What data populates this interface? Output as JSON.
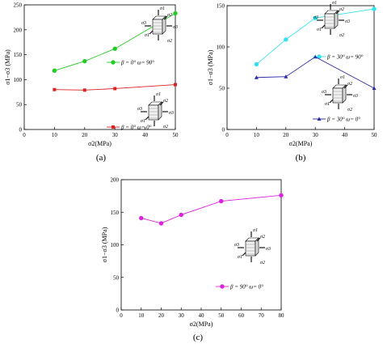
{
  "chart_data": [
    {
      "id": "a",
      "type": "line",
      "panel_label": "(a)",
      "xlabel": "σ2(MPa)",
      "ylabel": "σ1−σ3 (MPa)",
      "xlim": [
        0,
        50
      ],
      "ylim": [
        0,
        250
      ],
      "xticks": [
        0,
        10,
        20,
        30,
        40,
        50
      ],
      "yticks": [
        0,
        50,
        100,
        150,
        200,
        250
      ],
      "grid": false,
      "series": [
        {
          "name": "β = 0° ω= 90°",
          "color": "#22cc22",
          "marker": "circle",
          "x": [
            10,
            20,
            30,
            50
          ],
          "y": [
            118,
            137,
            162,
            233
          ]
        },
        {
          "name": "β = 0° ω= 0°",
          "color": "#dd2222",
          "marker": "square",
          "x": [
            10,
            20,
            30,
            50
          ],
          "y": [
            80,
            79,
            82,
            90
          ]
        }
      ],
      "sketch_labels": [
        "σ1",
        "σ2",
        "σ3",
        "σ3",
        "σ2",
        "σ1"
      ]
    },
    {
      "id": "b",
      "type": "line",
      "panel_label": "(b)",
      "xlabel": "σ2(MPa)",
      "ylabel": "σ1−σ3 (MPa)",
      "xlim": [
        0,
        50
      ],
      "ylim": [
        0,
        150
      ],
      "xticks": [
        0,
        10,
        20,
        30,
        40,
        50
      ],
      "yticks": [
        0,
        50,
        100,
        150
      ],
      "grid": false,
      "series": [
        {
          "name": "β = 30° ω= 90°",
          "color": "#33e0f0",
          "marker": "circle",
          "x": [
            10,
            20,
            30,
            50
          ],
          "y": [
            79,
            109,
            135,
            146
          ]
        },
        {
          "name": "β = 30° ω= 0°",
          "color": "#2a2aa8",
          "marker": "triangle",
          "x": [
            10,
            20,
            30,
            50
          ],
          "y": [
            63,
            64,
            88,
            50
          ]
        }
      ],
      "sketch_labels": [
        "σ1",
        "σ2",
        "σ3",
        "σ3",
        "σ2",
        "σ1"
      ]
    },
    {
      "id": "c",
      "type": "line",
      "panel_label": "(c)",
      "xlabel": "σ2(MPa)",
      "ylabel": "σ1−σ3 (MPa)",
      "xlim": [
        0,
        80
      ],
      "ylim": [
        0,
        200
      ],
      "xticks": [
        0,
        10,
        20,
        30,
        40,
        50,
        60,
        70,
        80
      ],
      "yticks": [
        0,
        50,
        100,
        150,
        200
      ],
      "grid": false,
      "series": [
        {
          "name": "β = 90° ω= 0°",
          "color": "#dd22dd",
          "marker": "circle",
          "x": [
            10,
            20,
            30,
            50,
            80
          ],
          "y": [
            141,
            133,
            146,
            167,
            176
          ]
        }
      ],
      "sketch_labels": [
        "σ1",
        "σ2",
        "σ3",
        "σ3",
        "σ2",
        "σ1"
      ]
    }
  ]
}
